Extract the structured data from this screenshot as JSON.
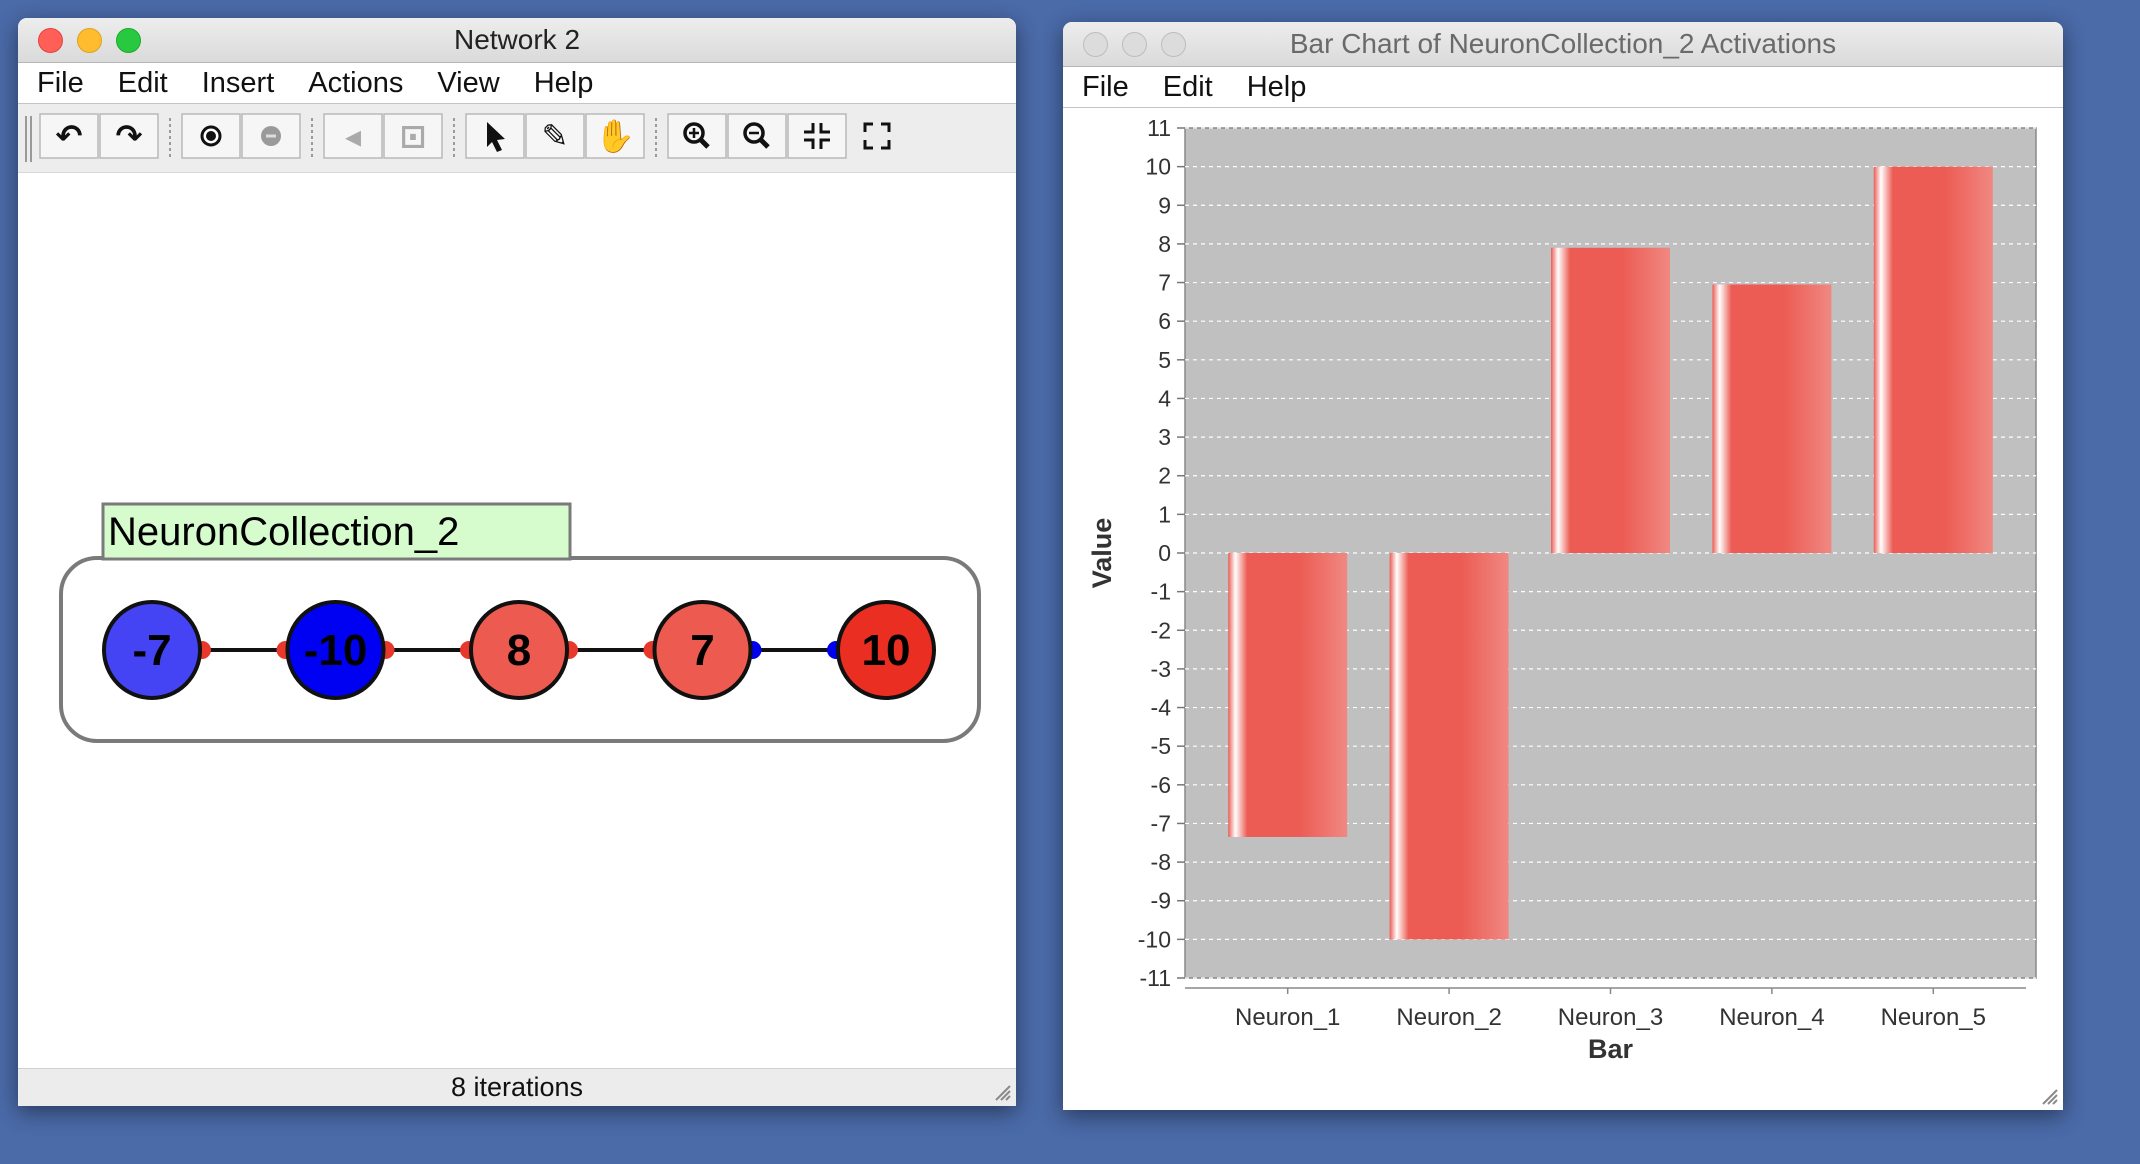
{
  "network_window": {
    "title": "Network 2",
    "menus": [
      "File",
      "Edit",
      "Insert",
      "Actions",
      "View",
      "Help"
    ],
    "toolbar": [
      {
        "name": "undo-icon",
        "glyph": "↶",
        "enabled": true
      },
      {
        "name": "redo-icon",
        "glyph": "↷",
        "enabled": true
      },
      {
        "name": "sep"
      },
      {
        "name": "add-neuron-icon",
        "glyph": "dot",
        "enabled": true
      },
      {
        "name": "clear-neuron-icon",
        "glyph": "dot-gray",
        "enabled": false
      },
      {
        "name": "sep"
      },
      {
        "name": "wand-disabled-icon",
        "glyph": "◂",
        "enabled": false
      },
      {
        "name": "grid-disabled-icon",
        "glyph": "⊡",
        "enabled": false
      },
      {
        "name": "sep"
      },
      {
        "name": "selection-arrow-icon",
        "glyph": "arrow",
        "enabled": true
      },
      {
        "name": "magic-wand-icon",
        "glyph": "✎",
        "enabled": true
      },
      {
        "name": "pan-hand-icon",
        "glyph": "✋",
        "enabled": true
      },
      {
        "name": "sep"
      },
      {
        "name": "zoom-in-icon",
        "glyph": "zoom+",
        "enabled": true
      },
      {
        "name": "zoom-out-icon",
        "glyph": "zoom-",
        "enabled": true
      },
      {
        "name": "fit-screen-icon",
        "glyph": "fit",
        "enabled": true
      },
      {
        "name": "fullscreen-icon",
        "glyph": "full",
        "enabled": true
      }
    ],
    "collection_label": "NeuronCollection_2",
    "neurons": [
      {
        "label": "-7",
        "fill": "#4444f4"
      },
      {
        "label": "-10",
        "fill": "#0000f2"
      },
      {
        "label": "8",
        "fill": "#ec5a50"
      },
      {
        "label": "7",
        "fill": "#ec5a50"
      },
      {
        "label": "10",
        "fill": "#ea2e22"
      }
    ],
    "synapse_colors": [
      "#e8382c",
      "#e8382c",
      "#e8382c",
      "#0000ee",
      "#0000ee"
    ],
    "status": "8 iterations"
  },
  "chart_window": {
    "title": "Bar Chart of NeuronCollection_2 Activations",
    "menus": [
      "File",
      "Edit",
      "Help"
    ]
  },
  "chart_data": {
    "type": "bar",
    "categories": [
      "Neuron_1",
      "Neuron_2",
      "Neuron_3",
      "Neuron_4",
      "Neuron_5"
    ],
    "values": [
      -7.35,
      -10,
      7.9,
      6.95,
      10
    ],
    "title": "",
    "xlabel": "Bar",
    "ylabel": "Value",
    "ylim": [
      -11,
      11
    ],
    "yticks": [
      11,
      10,
      9,
      8,
      7,
      6,
      5,
      4,
      3,
      2,
      1,
      0,
      -1,
      -2,
      -3,
      -4,
      -5,
      -6,
      -7,
      -8,
      -9,
      -10,
      -11
    ],
    "grid": true,
    "bar_color": "#ec5c54",
    "plot_background": "#c0c0c0"
  }
}
